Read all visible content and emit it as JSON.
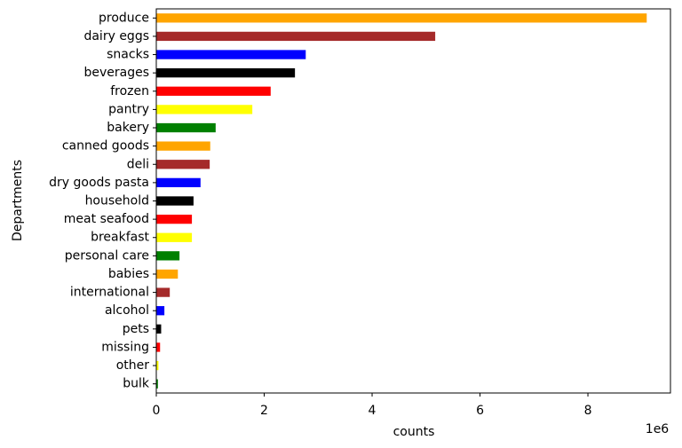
{
  "chart_data": {
    "type": "barh",
    "categories": [
      "produce",
      "dairy eggs",
      "snacks",
      "beverages",
      "frozen",
      "pantry",
      "bakery",
      "canned goods",
      "deli",
      "dry goods pasta",
      "household",
      "meat seafood",
      "breakfast",
      "personal care",
      "babies",
      "international",
      "alcohol",
      "pets",
      "missing",
      "other",
      "bulk"
    ],
    "values": [
      9.09,
      5.17,
      2.77,
      2.57,
      2.12,
      1.78,
      1.1,
      1.0,
      0.99,
      0.82,
      0.69,
      0.66,
      0.66,
      0.43,
      0.4,
      0.25,
      0.15,
      0.09,
      0.07,
      0.04,
      0.03
    ],
    "colors": [
      "#ffa500",
      "#a52a2a",
      "#0000ff",
      "#000000",
      "#ff0000",
      "#ffff00",
      "#008000",
      "#ffa500",
      "#a52a2a",
      "#0000ff",
      "#000000",
      "#ff0000",
      "#ffff00",
      "#008000",
      "#ffa500",
      "#a52a2a",
      "#0000ff",
      "#000000",
      "#ff0000",
      "#ffff00",
      "#008000"
    ],
    "xlim": [
      0,
      9.53
    ],
    "xticks": [
      0,
      2,
      4,
      6,
      8
    ],
    "xlabel": "counts",
    "ylabel": "Departments",
    "x_offset_label": "1e6"
  }
}
